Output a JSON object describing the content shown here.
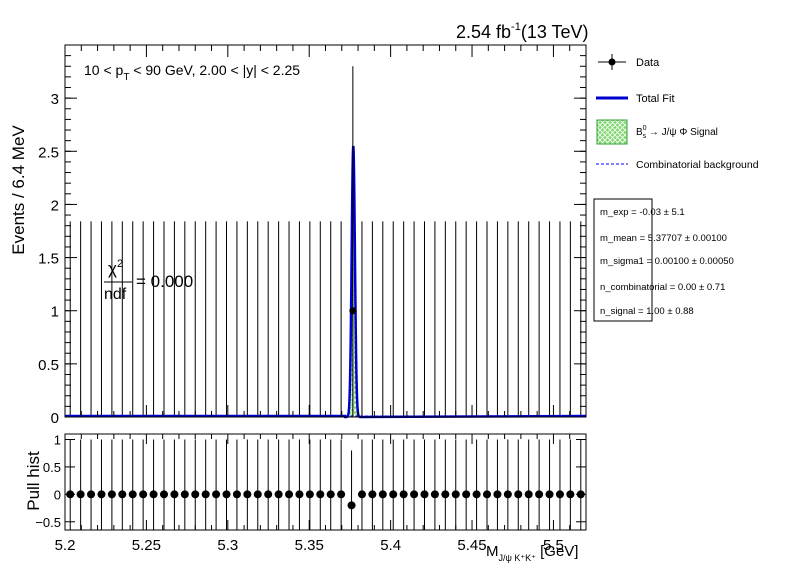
{
  "header": {
    "lumi_value": "2.54 fb",
    "lumi_exp": "-1",
    "energy": "(13 TeV)"
  },
  "selection": {
    "prefix": "10 < p",
    "sub": "T",
    "suffix": " < 90 GeV, 2.00 < |y| < 2.25"
  },
  "chi2": {
    "numerator": "χ",
    "exp": "2",
    "denominator": "ndf",
    "value": "= 0.000"
  },
  "legend": {
    "data": "Data",
    "total_fit": "Total Fit",
    "signal_prefix": "B",
    "signal_sup": "0",
    "signal_sub": "s",
    "signal_suffix": " → J/ψ Φ Signal",
    "background": "Combinatorial background"
  },
  "params": [
    "m_exp = -0.03 ± 5.1",
    "m_mean = 5.37707 ± 0.00100",
    "m_sigma1 = 0.00100 ± 0.00050",
    "n_combinatorial = 0.00 ± 0.71",
    "n_signal = 1.00 ± 0.88"
  ],
  "colors": {
    "total_fit": "#0000cc",
    "signal_fill": "#7fd96f",
    "signal_line": "#2e9d2e",
    "background": "#3333ff"
  },
  "chart_data": [
    {
      "type": "histogram",
      "ylabel": "Events / 6.4 MeV",
      "xlim": [
        5.2,
        5.52
      ],
      "ylim": [
        0,
        3.5
      ],
      "yticks": [
        "0",
        "0.5",
        "1",
        "1.5",
        "2",
        "2.5",
        "3"
      ],
      "bin_width": 0.0064,
      "empty_bin_error_up": 1.84,
      "data_points": [
        {
          "x": 5.3768,
          "y": 1,
          "yerr_low": 1,
          "yerr_high": 2.3
        }
      ],
      "signal_peak": {
        "mean": 5.37707,
        "sigma": 0.001,
        "peak_height": 2.55
      },
      "series": [
        {
          "name": "Data"
        },
        {
          "name": "Total Fit"
        },
        {
          "name": "B_s^0 → J/ψ Φ Signal"
        },
        {
          "name": "Combinatorial background"
        }
      ]
    },
    {
      "type": "scatter",
      "ylabel": "Pull hist",
      "xlabel_main": "M",
      "xlabel_sub": "J/ψ K⁺K⁺",
      "xlabel_unit": " [GeV]",
      "xlim": [
        5.2,
        5.52
      ],
      "ylim": [
        -0.65,
        1.1
      ],
      "yticks": [
        "−0.5",
        "0",
        "0.5",
        "1"
      ],
      "xticks": [
        "5.2",
        "5.25",
        "5.3",
        "5.35",
        "5.4",
        "5.45",
        "5.5"
      ],
      "pull_values_default": 0,
      "pull_error": 1,
      "special_point": {
        "x": 5.3768,
        "y": -0.2
      }
    }
  ]
}
